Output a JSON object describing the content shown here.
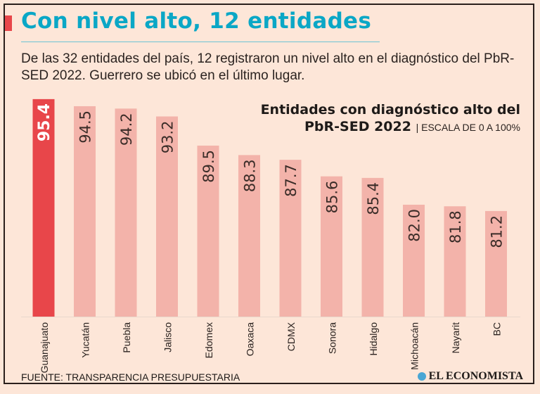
{
  "title": "Con nivel alto, 12 entidades",
  "subtitle": "De las 32 entidades del país, 12 registraron un nivel alto en el diagnóstico del PbR-SED 2022. Guerrero se ubicó en el último lugar.",
  "source": "FUENTE: TRANSPARENCIA PRESUPUESTARIA",
  "logo": "EL ECONOMISTA",
  "colors": {
    "title": "#0aa7c6",
    "highlight": "#e8464a",
    "bar": "#f3b3aa",
    "background": "#fde6d8"
  },
  "chart_data": {
    "type": "bar",
    "title": "Entidades con diagnóstico alto del PbR-SED 2022",
    "title_line1": "Entidades con diagnóstico alto del",
    "title_line2": "PbR-SED 2022",
    "scale_note": "| ESCALA DE 0 A 100%",
    "categories": [
      "Guanajuato",
      "Yucatán",
      "Puebla",
      "Jalisco",
      "Edomex",
      "Oaxaca",
      "CDMX",
      "Sonora",
      "Hidalgo",
      "Michoacán",
      "Nayarit",
      "BC"
    ],
    "values": [
      95.4,
      94.5,
      94.2,
      93.2,
      89.5,
      88.3,
      87.7,
      85.6,
      85.4,
      82.0,
      81.8,
      81.2
    ],
    "labels": [
      "95.4",
      "94.5",
      "94.2",
      "93.2",
      "89.5",
      "88.3",
      "87.7",
      "85.6",
      "85.4",
      "82.0",
      "81.8",
      "81.2"
    ],
    "highlight_index": 0,
    "grid": false
  }
}
